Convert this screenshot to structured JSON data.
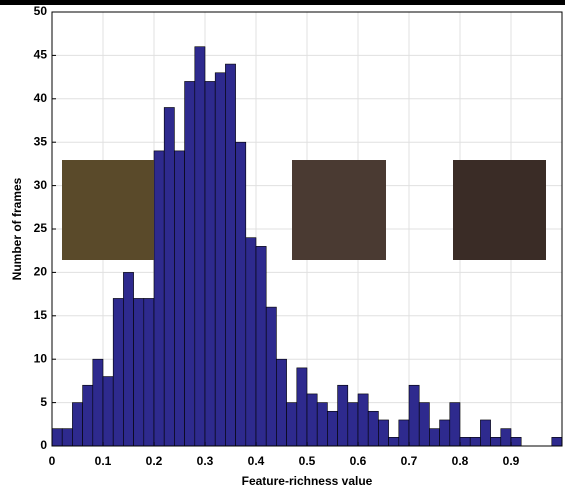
{
  "chart_data": {
    "type": "histogram",
    "xlabel": "Feature-richness value",
    "ylabel": "Number of frames",
    "bins": [
      0,
      0.02,
      0.04,
      0.06,
      0.08,
      0.1,
      0.12,
      0.14,
      0.16,
      0.18,
      0.2,
      0.22,
      0.24,
      0.26,
      0.28,
      0.3,
      0.32,
      0.34,
      0.36,
      0.38,
      0.4,
      0.42,
      0.44,
      0.46,
      0.48,
      0.5,
      0.52,
      0.54,
      0.56,
      0.58,
      0.6,
      0.62,
      0.64,
      0.66,
      0.68,
      0.7,
      0.72,
      0.74,
      0.76,
      0.78,
      0.8,
      0.82,
      0.84,
      0.86,
      0.88,
      0.9,
      0.92,
      0.94,
      0.96,
      0.98,
      1
    ],
    "values": [
      2,
      2,
      5,
      7,
      10,
      8,
      17,
      20,
      17,
      17,
      34,
      39,
      34,
      42,
      46,
      42,
      43,
      44,
      35,
      24,
      23,
      16,
      10,
      5,
      9,
      6,
      5,
      4,
      7,
      5,
      6,
      4,
      3,
      1,
      3,
      7,
      5,
      2,
      3,
      5,
      1,
      1,
      3,
      1,
      2,
      1,
      0,
      0,
      0,
      1
    ],
    "color": "#2e2a8e",
    "xlim": [
      0,
      1
    ],
    "xticks": [
      0,
      0.1,
      0.2,
      0.3,
      0.4,
      0.5,
      0.6,
      0.7,
      0.8,
      0.9
    ],
    "ylim": [
      0,
      50
    ],
    "yticks": [
      0,
      5,
      10,
      15,
      20,
      25,
      30,
      35,
      40,
      45,
      50
    ],
    "grid": true
  }
}
